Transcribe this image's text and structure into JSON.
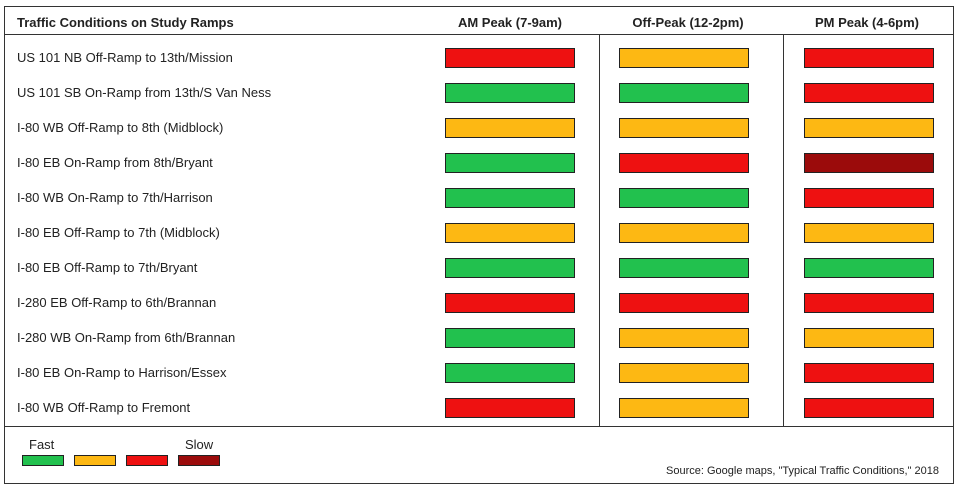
{
  "chart_data": {
    "type": "table",
    "title": "Traffic Conditions on Study Ramps",
    "columns": [
      "AM Peak (7-9am)",
      "Off-Peak (12-2pm)",
      "PM Peak (4-6pm)"
    ],
    "rows": [
      {
        "label": "US 101 NB Off-Ramp to 13th/Mission",
        "values": [
          "red",
          "yellow",
          "red"
        ]
      },
      {
        "label": "US 101 SB On-Ramp from 13th/S Van Ness",
        "values": [
          "green",
          "green",
          "red"
        ]
      },
      {
        "label": "I-80 WB Off-Ramp to 8th (Midblock)",
        "values": [
          "yellow",
          "yellow",
          "yellow"
        ]
      },
      {
        "label": "I-80 EB On-Ramp from 8th/Bryant",
        "values": [
          "green",
          "red",
          "darkred"
        ]
      },
      {
        "label": "I-80 WB On-Ramp to 7th/Harrison",
        "values": [
          "green",
          "green",
          "red"
        ]
      },
      {
        "label": "I-80 EB Off-Ramp to 7th (Midblock)",
        "values": [
          "yellow",
          "yellow",
          "yellow"
        ]
      },
      {
        "label": "I-80 EB Off-Ramp to 7th/Bryant",
        "values": [
          "green",
          "green",
          "green"
        ]
      },
      {
        "label": "I-280 EB Off-Ramp to 6th/Brannan",
        "values": [
          "red",
          "red",
          "red"
        ]
      },
      {
        "label": "I-280 WB On-Ramp from 6th/Brannan",
        "values": [
          "green",
          "yellow",
          "yellow"
        ]
      },
      {
        "label": "I-80 EB On-Ramp to Harrison/Essex",
        "values": [
          "green",
          "yellow",
          "red"
        ]
      },
      {
        "label": "I-80 WB Off-Ramp to Fremont",
        "values": [
          "red",
          "yellow",
          "red"
        ]
      }
    ],
    "legend": {
      "fast_label": "Fast",
      "slow_label": "Slow",
      "scale": [
        "green",
        "yellow",
        "red",
        "darkred"
      ]
    },
    "colors": {
      "green": "#22c14e",
      "yellow": "#fdb813",
      "red": "#ee1111",
      "darkred": "#9b0b0b"
    },
    "source": "Source: Google maps, \"Typical Traffic Conditions,\" 2018"
  }
}
